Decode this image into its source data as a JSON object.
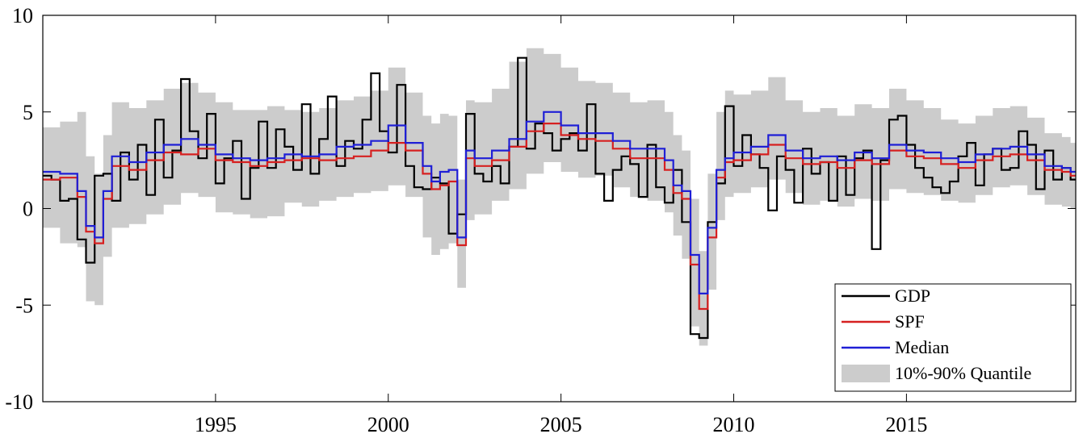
{
  "chart_data": {
    "type": "line",
    "title": "",
    "xlabel": "",
    "ylabel": "",
    "xlim": [
      1990.0,
      2019.9
    ],
    "ylim": [
      -10,
      10
    ],
    "xticks": [
      1995,
      2000,
      2005,
      2010,
      2015
    ],
    "xtick_labels": [
      "1995",
      "2000",
      "2005",
      "2010",
      "2015"
    ],
    "yticks": [
      -10,
      -5,
      0,
      5,
      10
    ],
    "ytick_labels": [
      "-10",
      "-5",
      "0",
      "5",
      "10"
    ],
    "grid": false,
    "legend_position": "bottom-right",
    "legend": [
      "GDP",
      "SPF",
      "Median",
      "10%-90% Quantile"
    ],
    "colors": {
      "GDP": "#000000",
      "SPF": "#d62020",
      "Median": "#1f1fd6",
      "band": "#cccccc"
    },
    "series": [
      {
        "name": "GDP",
        "style": "step",
        "x": [
          1990.0,
          1990.25,
          1990.5,
          1990.75,
          1991.0,
          1991.25,
          1991.5,
          1991.75,
          1992.0,
          1992.25,
          1992.5,
          1992.75,
          1993.0,
          1993.25,
          1993.5,
          1993.75,
          1994.0,
          1994.25,
          1994.5,
          1994.75,
          1995.0,
          1995.25,
          1995.5,
          1995.75,
          1996.0,
          1996.25,
          1996.5,
          1996.75,
          1997.0,
          1997.25,
          1997.5,
          1997.75,
          1998.0,
          1998.25,
          1998.5,
          1998.75,
          1999.0,
          1999.25,
          1999.5,
          1999.75,
          2000.0,
          2000.25,
          2000.5,
          2000.75,
          2001.0,
          2001.25,
          2001.5,
          2001.75,
          2002.0,
          2002.25,
          2002.5,
          2002.75,
          2003.0,
          2003.25,
          2003.5,
          2003.75,
          2004.0,
          2004.25,
          2004.5,
          2004.75,
          2005.0,
          2005.25,
          2005.5,
          2005.75,
          2006.0,
          2006.25,
          2006.5,
          2006.75,
          2007.0,
          2007.25,
          2007.5,
          2007.75,
          2008.0,
          2008.25,
          2008.5,
          2008.75,
          2009.0,
          2009.25,
          2009.5,
          2009.75,
          2010.0,
          2010.25,
          2010.5,
          2010.75,
          2011.0,
          2011.25,
          2011.5,
          2011.75,
          2012.0,
          2012.25,
          2012.5,
          2012.75,
          2013.0,
          2013.25,
          2013.5,
          2013.75,
          2014.0,
          2014.25,
          2014.5,
          2014.75,
          2015.0,
          2015.25,
          2015.5,
          2015.75,
          2016.0,
          2016.25,
          2016.5,
          2016.75,
          2017.0,
          2017.25,
          2017.5,
          2017.75,
          2018.0,
          2018.25,
          2018.5,
          2018.75,
          2019.0,
          2019.25,
          2019.5,
          2019.75
        ],
        "values": [
          1.7,
          1.5,
          0.4,
          0.5,
          -1.6,
          -2.8,
          1.7,
          1.8,
          0.4,
          2.9,
          1.5,
          3.3,
          0.7,
          4.6,
          1.6,
          3.0,
          6.7,
          4.0,
          2.6,
          4.9,
          1.3,
          2.6,
          3.5,
          0.5,
          2.1,
          4.5,
          2.1,
          4.1,
          3.2,
          2.0,
          5.4,
          1.8,
          3.6,
          5.8,
          2.2,
          3.5,
          3.1,
          4.6,
          7.0,
          4.0,
          2.9,
          6.4,
          2.2,
          1.1,
          1.0,
          1.6,
          1.3,
          -1.3,
          -0.3,
          4.9,
          1.8,
          1.4,
          2.2,
          1.3,
          3.2,
          7.8,
          3.1,
          4.4,
          3.9,
          3.0,
          3.6,
          3.9,
          3.0,
          5.4,
          1.8,
          0.4,
          2.0,
          2.7,
          2.3,
          0.6,
          3.3,
          1.1,
          0.3,
          2.0,
          -0.7,
          -6.5,
          -6.7,
          -0.7,
          1.3,
          5.3,
          2.2,
          3.8,
          2.8,
          2.1,
          -0.1,
          2.7,
          2.0,
          0.3,
          3.1,
          1.8,
          2.4,
          0.4,
          2.7,
          0.7,
          2.6,
          3.0,
          -2.1,
          2.5,
          4.6,
          4.8,
          3.3,
          2.1,
          1.6,
          1.1,
          0.8,
          1.4,
          2.7,
          3.4,
          1.2,
          2.8,
          3.1,
          2.0,
          2.1,
          4.0,
          3.3,
          1.0,
          3.0,
          1.5,
          2.1,
          1.5
        ]
      },
      {
        "name": "SPF",
        "style": "step",
        "x": [
          1990.0,
          1990.5,
          1991.0,
          1991.25,
          1991.5,
          1991.75,
          1992.0,
          1992.5,
          1993.0,
          1993.5,
          1994.0,
          1994.5,
          1995.0,
          1995.5,
          1996.0,
          1996.5,
          1997.0,
          1997.5,
          1998.0,
          1998.5,
          1999.0,
          1999.5,
          2000.0,
          2000.5,
          2001.0,
          2001.25,
          2001.5,
          2001.75,
          2002.0,
          2002.25,
          2002.5,
          2003.0,
          2003.5,
          2004.0,
          2004.5,
          2005.0,
          2005.5,
          2006.0,
          2006.5,
          2007.0,
          2007.5,
          2008.0,
          2008.25,
          2008.5,
          2008.75,
          2009.0,
          2009.25,
          2009.5,
          2009.75,
          2010.0,
          2010.5,
          2011.0,
          2011.5,
          2012.0,
          2012.5,
          2013.0,
          2013.5,
          2014.0,
          2014.5,
          2015.0,
          2015.5,
          2016.0,
          2016.5,
          2017.0,
          2017.5,
          2018.0,
          2018.5,
          2019.0,
          2019.5,
          2019.75
        ],
        "values": [
          1.5,
          1.6,
          0.6,
          -1.2,
          -1.8,
          0.5,
          2.2,
          2.0,
          2.5,
          2.9,
          2.8,
          3.1,
          2.5,
          2.4,
          2.2,
          2.4,
          2.5,
          2.6,
          2.5,
          2.6,
          2.7,
          3.0,
          3.4,
          3.0,
          1.8,
          1.0,
          1.2,
          1.4,
          -1.9,
          2.6,
          2.2,
          2.5,
          3.2,
          4.0,
          4.4,
          3.8,
          3.6,
          3.5,
          3.1,
          2.6,
          2.6,
          2.0,
          0.8,
          0.5,
          -2.9,
          -5.2,
          -1.5,
          1.6,
          2.4,
          2.5,
          2.8,
          3.3,
          2.6,
          2.3,
          2.4,
          2.1,
          2.5,
          2.3,
          3.0,
          2.7,
          2.6,
          2.3,
          2.1,
          2.5,
          2.7,
          2.8,
          2.5,
          2.0,
          1.9,
          1.7
        ]
      },
      {
        "name": "Median",
        "style": "step",
        "x": [
          1990.0,
          1990.5,
          1991.0,
          1991.25,
          1991.5,
          1991.75,
          1992.0,
          1992.5,
          1993.0,
          1993.5,
          1994.0,
          1994.5,
          1995.0,
          1995.5,
          1996.0,
          1996.5,
          1997.0,
          1997.5,
          1998.0,
          1998.5,
          1999.0,
          1999.5,
          2000.0,
          2000.5,
          2001.0,
          2001.25,
          2001.5,
          2001.75,
          2002.0,
          2002.25,
          2002.5,
          2003.0,
          2003.5,
          2004.0,
          2004.5,
          2005.0,
          2005.5,
          2006.0,
          2006.5,
          2007.0,
          2007.5,
          2008.0,
          2008.25,
          2008.5,
          2008.75,
          2009.0,
          2009.25,
          2009.5,
          2009.75,
          2010.0,
          2010.5,
          2011.0,
          2011.5,
          2012.0,
          2012.5,
          2013.0,
          2013.5,
          2014.0,
          2014.5,
          2015.0,
          2015.5,
          2016.0,
          2016.5,
          2017.0,
          2017.5,
          2018.0,
          2018.5,
          2019.0,
          2019.5,
          2019.75
        ],
        "values": [
          1.9,
          1.8,
          0.9,
          -0.9,
          -1.5,
          0.9,
          2.7,
          2.4,
          2.9,
          3.3,
          3.6,
          3.3,
          2.8,
          2.6,
          2.5,
          2.6,
          2.8,
          2.7,
          2.8,
          3.2,
          3.3,
          3.5,
          4.3,
          3.4,
          2.2,
          1.4,
          1.9,
          2.0,
          -1.5,
          3.0,
          2.6,
          3.0,
          3.6,
          4.5,
          5.0,
          4.3,
          3.9,
          3.9,
          3.5,
          3.1,
          3.1,
          2.5,
          1.2,
          0.9,
          -2.4,
          -4.4,
          -1.0,
          2.0,
          2.6,
          2.9,
          3.2,
          3.8,
          3.0,
          2.6,
          2.7,
          2.5,
          2.9,
          2.6,
          3.3,
          3.0,
          2.9,
          2.6,
          2.4,
          2.8,
          3.1,
          3.2,
          2.8,
          2.2,
          2.1,
          1.9
        ]
      }
    ],
    "band": {
      "name": "10%-90% Quantile",
      "x": [
        1990.0,
        1990.5,
        1991.0,
        1991.25,
        1991.5,
        1991.75,
        1992.0,
        1992.5,
        1993.0,
        1993.5,
        1994.0,
        1994.5,
        1995.0,
        1995.5,
        1996.0,
        1996.5,
        1997.0,
        1997.5,
        1998.0,
        1998.5,
        1999.0,
        1999.5,
        2000.0,
        2000.5,
        2001.0,
        2001.25,
        2001.5,
        2001.75,
        2002.0,
        2002.25,
        2002.5,
        2003.0,
        2003.5,
        2004.0,
        2004.5,
        2005.0,
        2005.5,
        2006.0,
        2006.5,
        2007.0,
        2007.5,
        2008.0,
        2008.25,
        2008.5,
        2008.75,
        2009.0,
        2009.25,
        2009.5,
        2009.75,
        2010.0,
        2010.5,
        2011.0,
        2011.5,
        2012.0,
        2012.5,
        2013.0,
        2013.5,
        2014.0,
        2014.5,
        2015.0,
        2015.5,
        2016.0,
        2016.5,
        2017.0,
        2017.5,
        2018.0,
        2018.5,
        2019.0,
        2019.5,
        2019.75
      ],
      "lower": [
        -1.0,
        -1.8,
        -2.0,
        -4.8,
        -5.0,
        -2.5,
        -1.0,
        -0.8,
        -0.3,
        0.2,
        0.8,
        0.6,
        -0.2,
        -0.3,
        -0.5,
        -0.4,
        0.3,
        0.1,
        0.4,
        0.6,
        0.8,
        0.9,
        1.2,
        0.6,
        -1.5,
        -2.4,
        -2.1,
        -1.8,
        -4.1,
        -0.6,
        -0.3,
        0.4,
        1.0,
        1.8,
        2.4,
        1.9,
        1.6,
        1.7,
        1.1,
        0.6,
        0.4,
        -0.2,
        -1.4,
        -2.6,
        -6.1,
        -7.1,
        -4.2,
        -0.6,
        0.6,
        0.8,
        1.1,
        1.5,
        0.8,
        0.2,
        0.4,
        0.1,
        0.5,
        0.4,
        1.0,
        0.8,
        0.7,
        0.4,
        0.3,
        0.7,
        1.1,
        1.2,
        0.7,
        0.2,
        0.1,
        0.0
      ],
      "upper": [
        4.2,
        4.5,
        5.0,
        2.7,
        1.8,
        3.8,
        5.5,
        5.2,
        5.6,
        6.2,
        6.5,
        6.0,
        5.5,
        5.1,
        5.1,
        5.3,
        5.1,
        5.0,
        5.2,
        5.6,
        5.8,
        6.1,
        7.3,
        6.0,
        4.8,
        4.4,
        4.9,
        4.8,
        1.5,
        5.6,
        5.5,
        6.2,
        7.6,
        8.3,
        8.0,
        7.3,
        6.6,
        6.5,
        6.0,
        5.5,
        5.6,
        5.0,
        3.8,
        3.0,
        0.5,
        -2.2,
        1.8,
        5.0,
        6.1,
        5.9,
        6.1,
        6.8,
        5.6,
        5.0,
        5.2,
        4.8,
        5.4,
        5.2,
        6.2,
        5.6,
        5.2,
        4.6,
        4.4,
        4.8,
        5.2,
        5.3,
        4.7,
        3.9,
        3.7,
        3.4
      ]
    }
  }
}
